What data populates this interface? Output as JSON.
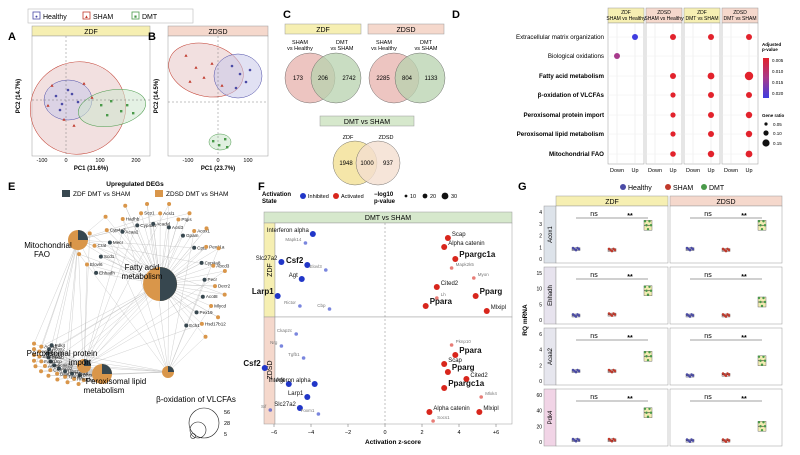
{
  "legend_top": {
    "items": [
      {
        "label": "Healthy",
        "color": "#4b4ba6"
      },
      {
        "label": "SHAM",
        "color": "#c0392b"
      },
      {
        "label": "DMT",
        "color": "#4a9a4a"
      }
    ]
  },
  "panels": {
    "A": {
      "letter": "A",
      "strip": "ZDF",
      "xlabel": "PC1 (31.6%)",
      "ylabel": "PC2 (14.7%)",
      "xticks": [
        "-100",
        "0",
        "100",
        "200"
      ]
    },
    "B": {
      "letter": "B",
      "strip": "ZDSD",
      "xlabel": "PC1 (23.7%)",
      "ylabel": "PC2 (14.5%)",
      "xticks": [
        "-100",
        "0",
        "100"
      ]
    },
    "C": {
      "letter": "C",
      "zdf": {
        "strip": "ZDF",
        "left": "SHAM\nvs Healthy",
        "right": "DMT\nvs SHAM",
        "a": "173",
        "ab": "206",
        "b": "2742"
      },
      "zdsd": {
        "strip": "ZDSD",
        "left": "SHAM\nvs Healthy",
        "right": "DMT\nvs SHAM",
        "a": "2285",
        "ab": "804",
        "b": "1133"
      },
      "dmt": {
        "strip": "DMT vs SHAM",
        "left": "ZDF",
        "right": "ZDSD",
        "a": "1948",
        "ab": "1000",
        "b": "937"
      }
    },
    "D": {
      "letter": "D",
      "columns": [
        "ZDF\nSHAM vs Healthy",
        "ZDSD\nSHAM vs Healthy",
        "ZDF\nDMT vs SHAM",
        "ZDSD\nDMT vs SHAM"
      ],
      "rows": [
        "Extracellular matrix organization",
        "Biological oxidations",
        "Fatty acid metabolism",
        "β-oxidation of VLCFAs",
        "Peroxisomal protein import",
        "Peroxisomal lipid metabolism",
        "Mitochondrial FAO"
      ],
      "xticks": [
        "Down",
        "Up"
      ],
      "legend_padj_title": "Adjusted\np-value",
      "legend_padj_ticks": [
        "0.005",
        "0.010",
        "0.015",
        "0.020"
      ],
      "legend_gr_title": "Gene ratio",
      "legend_gr_ticks": [
        "0.05",
        "0.10",
        "0.15"
      ]
    },
    "E": {
      "letter": "E",
      "title": "Upregulated DEGs",
      "legend": [
        {
          "label": "ZDF DMT vs SHAM",
          "color": "#37474f"
        },
        {
          "label": "ZDSD DMT vs SHAM",
          "color": "#d9964a"
        }
      ],
      "hubs": [
        "Mitochondrial FAO",
        "Fatty acid metabolism",
        "Peroxisomal protein import",
        "Peroxisomal lipid metabolism",
        "β-oxidation of VLCFAs"
      ],
      "size_legend": [
        "56",
        "28",
        "5"
      ],
      "genes": [
        "Ehhadh",
        "Elovl6",
        "Fads2",
        "Scd1",
        "Crat",
        "Hadh",
        "Mecr",
        "Cyp4a3",
        "Cpt1a",
        "Acaa2",
        "Hadhb",
        "Pnpla",
        "Cyp4a4",
        "Scp1",
        "Acadl",
        "Acadvl",
        "Acsl1",
        "Slc27a2",
        "Acsl3",
        "Ptgis",
        "Them4",
        "Gpam",
        "Acox1",
        "Hsd17b4",
        "Cpt2",
        "Pex11a",
        "Acot4",
        "Cyp4a8",
        "Abcd3",
        "Cyp4a2",
        "Pecr",
        "Decr2",
        "Cyp4a14",
        "Acot8",
        "Mlycd",
        "Pex5",
        "Pex19",
        "Hsd17b12",
        "Elovl2",
        "Ech1",
        "Lonp2",
        "Rps27a",
        "Dhrs4",
        "Hmgcl",
        "Cat",
        "Pex14",
        "Tysnd1",
        "Gstk1",
        "Ubqz2",
        "Baat",
        "Pex7",
        "Scp2",
        "Crot",
        "Ehhadh2",
        "Acaa1a",
        "Acot2",
        "Cyp2c",
        "Ucp",
        "Fabp",
        "Pex11b",
        "Cpt1b",
        "Slc25a20",
        "Elovl1",
        "Elovl5",
        "Hacd",
        "Decr1",
        "Acox2",
        "Acox3",
        "Slc22a5",
        "Pdk4"
      ]
    },
    "F": {
      "letter": "F",
      "strip": "DMT vs SHAM",
      "legend_activation_title": "Activation\nState",
      "legend_activation": [
        {
          "label": "Inhibited",
          "color": "#2136c8"
        },
        {
          "label": "Activated",
          "color": "#d8261c"
        }
      ],
      "legend_size_title": "−log10\np-value",
      "legend_size_ticks": [
        "10",
        "20",
        "30"
      ],
      "rows": [
        "ZDF",
        "ZDSD"
      ],
      "xlabel": "Activation z-score",
      "xticks": [
        "−6",
        "−4",
        "−2",
        "0",
        "2",
        "4",
        "+6"
      ],
      "zdf_labels": [
        {
          "t": "Interferon alpha",
          "big": false
        },
        {
          "t": "Mapk14",
          "big": false,
          "faint": true
        },
        {
          "t": "Slc27a2",
          "big": false
        },
        {
          "t": "Csf2",
          "big": true
        },
        {
          "t": "Agt",
          "big": false
        },
        {
          "t": "Elovl3",
          "faint": true
        },
        {
          "t": "Larp1",
          "big": true
        },
        {
          "t": "Rictor",
          "faint": true
        },
        {
          "t": "Cbp",
          "faint": true
        },
        {
          "t": "Scap",
          "big": false
        },
        {
          "t": "Alpha catenin",
          "big": false
        },
        {
          "t": "Ppargc1a",
          "big": true
        },
        {
          "t": "Mapk2k5",
          "faint": true
        },
        {
          "t": "Myon",
          "faint": true
        },
        {
          "t": "Cited2",
          "big": false
        },
        {
          "t": "Lh",
          "faint": true
        },
        {
          "t": "Pparg",
          "big": true
        },
        {
          "t": "Ppara",
          "big": true
        },
        {
          "t": "Mlxipl",
          "big": false
        }
      ],
      "zdsd_labels": [
        {
          "t": "Ckap2c",
          "faint": true
        },
        {
          "t": "Nrg",
          "faint": true
        },
        {
          "t": "Csf2",
          "big": true
        },
        {
          "t": "Tgfb1",
          "faint": true
        },
        {
          "t": "Agt",
          "big": false
        },
        {
          "t": "Interferon alpha",
          "big": false
        },
        {
          "t": "Larp1",
          "big": false
        },
        {
          "t": "Slc27a2",
          "big": false
        },
        {
          "t": "Sif",
          "faint": true
        },
        {
          "t": "Foxm1",
          "faint": true
        },
        {
          "t": "Pknp10",
          "faint": true
        },
        {
          "t": "Ppara",
          "big": true
        },
        {
          "t": "Scap",
          "big": false
        },
        {
          "t": "Pparg",
          "big": true
        },
        {
          "t": "Cited2",
          "big": false
        },
        {
          "t": "Ppargc1a",
          "big": true
        },
        {
          "t": "Mlxipl",
          "big": false
        },
        {
          "t": "Alpha catenin",
          "big": false
        },
        {
          "t": "Mlxk4",
          "faint": true
        },
        {
          "t": "Socs1",
          "faint": true
        }
      ]
    },
    "G": {
      "letter": "G",
      "legend": [
        {
          "label": "Healthy",
          "color": "#4b4ba6"
        },
        {
          "label": "SHAM",
          "color": "#c0392b"
        },
        {
          "label": "DMT",
          "color": "#4a9a4a"
        }
      ],
      "cols": [
        "ZDF",
        "ZDSD"
      ],
      "rows": [
        "Acox1",
        "Ehhadh",
        "Acaa2",
        "Pdk4"
      ],
      "ylabel": "RQ mRNA",
      "sig": [
        "ns",
        "**"
      ],
      "yticks": {
        "Acox1": [
          "0",
          "1",
          "2",
          "3",
          "4"
        ],
        "Ehhadh": [
          "0",
          "5",
          "10",
          "15"
        ],
        "Acaa2": [
          "0",
          "2",
          "4",
          "6"
        ],
        "Pdk4": [
          "0",
          "20",
          "40",
          "60"
        ]
      }
    }
  },
  "colors": {
    "healthy": "#4b4ba6",
    "sham": "#c0392b",
    "dmt": "#4a9a4a",
    "zdf_strip": "#f6efb2",
    "zdsd_strip": "#f5d8cc",
    "dmt_strip": "#d6e8cc",
    "inhibited": "#2136c8",
    "activated": "#d8261c"
  }
}
